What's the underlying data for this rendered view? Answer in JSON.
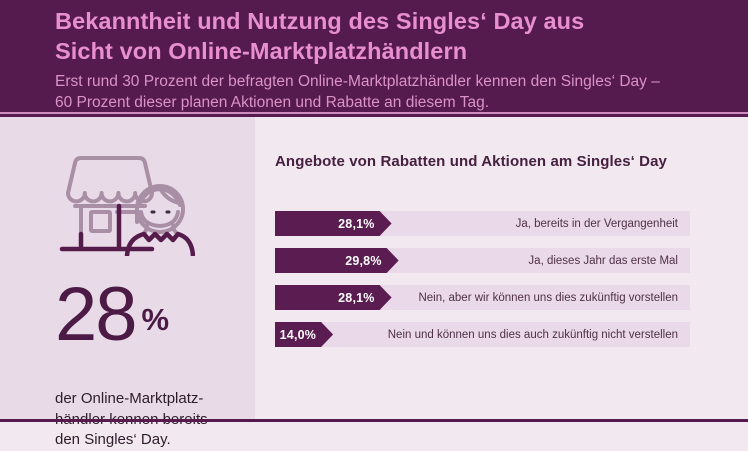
{
  "header": {
    "title_line1": "Bekanntheit und Nutzung des Singles‘ Day aus",
    "title_line2": "Sicht von Online-Marktplatzhändlern",
    "subtitle_line1": "Erst rund 30 Prozent der befragten Online-Marktplatzhändler kennen den Singles‘ Day –",
    "subtitle_line2": "60 Prozent dieser planen Aktionen und Rabatte an diesem Tag."
  },
  "left_panel": {
    "icon": "market-stall-with-seller-icon",
    "stat_value": "28",
    "stat_unit": "%",
    "caption_line1": "der Online-Marktplatz-",
    "caption_line2": "händler kennen bereits",
    "caption_line3": "den Singles‘ Day."
  },
  "chart_data": {
    "type": "bar",
    "orientation": "horizontal",
    "title": "Angebote von Rabatten und Aktionen am Singles‘ Day",
    "categories": [
      "Ja, bereits in der Vergangenheit",
      "Ja, dieses Jahr das erste Mal",
      "Nein, aber wir können uns dies zukünftig vorstellen",
      "Nein und können uns dies auch zukünftig nicht verstellen"
    ],
    "values": [
      28.1,
      29.8,
      28.1,
      14.0
    ],
    "value_labels": [
      "28,1%",
      "29,8%",
      "28,1%",
      "14,0%"
    ],
    "xlim": [
      0,
      100
    ],
    "unit": "percent",
    "grid": false,
    "legend": false
  },
  "colors": {
    "header_background": "#561b4e",
    "title_pink": "#e88fd0",
    "subtitle_pink": "#db92c6",
    "divider_pink": "#cf8cc0",
    "left_panel_background": "#e9dae7",
    "right_panel_background": "#f2e8f0",
    "bar_track": "#ead9e8",
    "bar_fill": "#5b1c51",
    "dark_text": "#46203f",
    "stat_color": "#4b1a45",
    "icon_muted": "#a88fa5",
    "icon_dark": "#541b4b"
  }
}
